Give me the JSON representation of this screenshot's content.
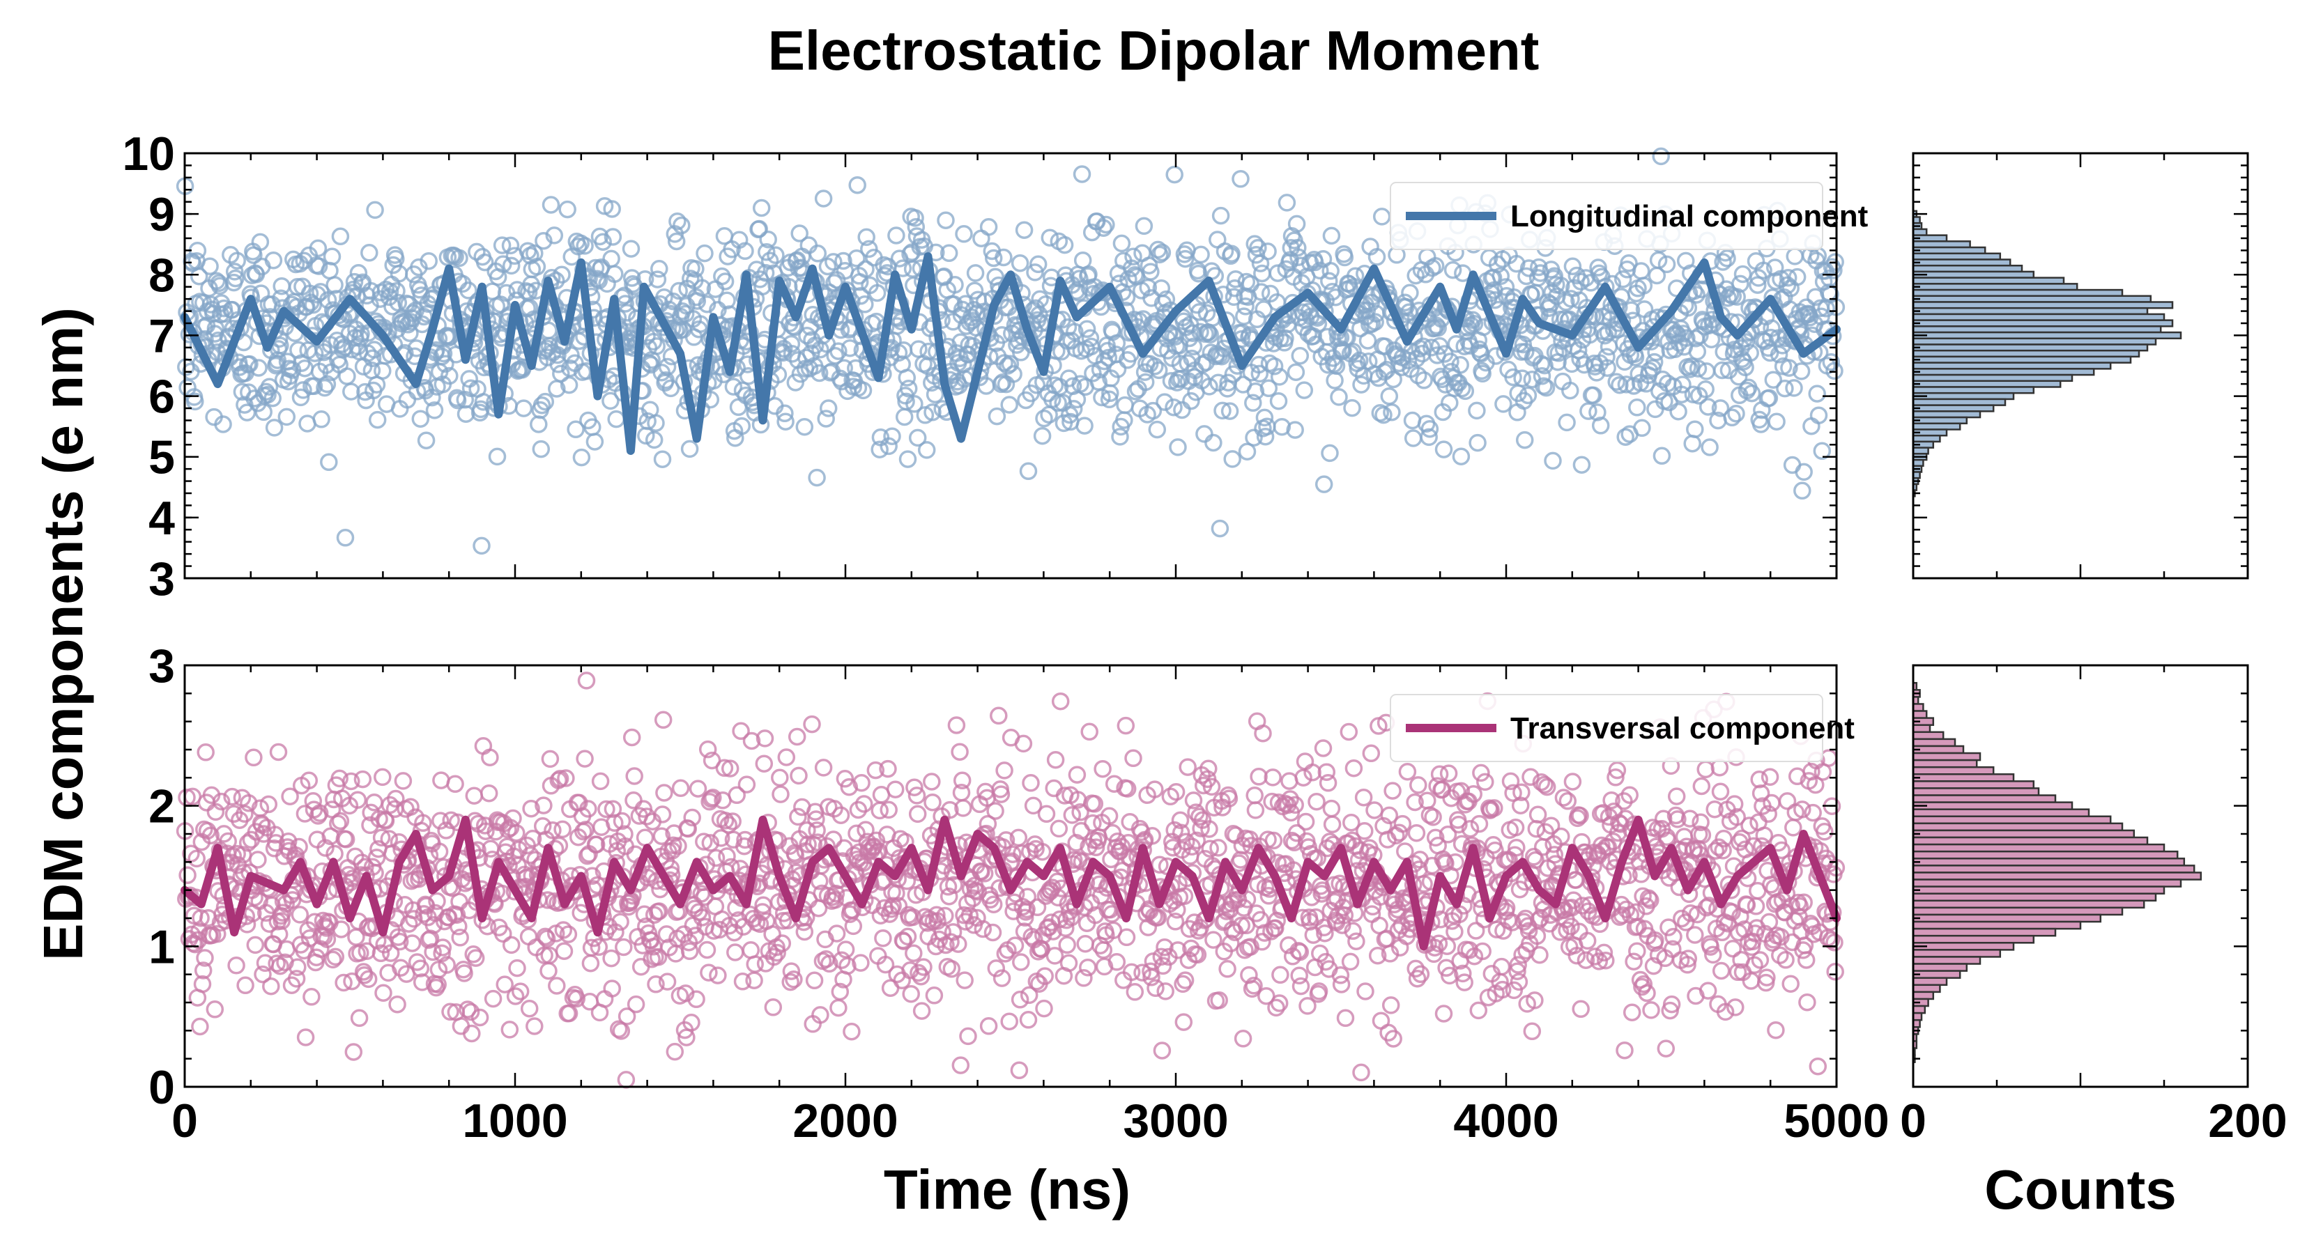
{
  "chart_data": {
    "type": "scatter",
    "title": "Electrostatic Dipolar Moment",
    "ylabel": "EDM components (e nm)",
    "xlabel": "Time (ns)",
    "hist_xlabel": "Counts",
    "grid": false,
    "xlim": [
      0,
      5000
    ],
    "x_ticks": [
      "0",
      "1000",
      "2000",
      "3000",
      "4000",
      "5000"
    ],
    "hist_xlim": [
      0,
      200
    ],
    "hist_ticks": [
      "0",
      "200"
    ],
    "panels": [
      {
        "name": "Longitudinal component",
        "color": "#4477aa",
        "ylim": [
          3,
          10
        ],
        "y_ticks": [
          "3",
          "4",
          "5",
          "6",
          "7",
          "8",
          "9",
          "10"
        ],
        "legend_position": "upper-right",
        "scatter": {
          "n_points": 2000,
          "mean": 7.1,
          "sd": 0.85
        },
        "running_mean": {
          "x": [
            0,
            100,
            200,
            250,
            300,
            400,
            500,
            600,
            700,
            750,
            800,
            850,
            900,
            950,
            1000,
            1050,
            1100,
            1150,
            1200,
            1250,
            1300,
            1350,
            1390,
            1450,
            1500,
            1550,
            1600,
            1650,
            1700,
            1750,
            1800,
            1850,
            1900,
            1950,
            2000,
            2100,
            2150,
            2200,
            2250,
            2300,
            2350,
            2400,
            2450,
            2500,
            2550,
            2600,
            2650,
            2700,
            2800,
            2900,
            3000,
            3100,
            3200,
            3300,
            3400,
            3500,
            3600,
            3700,
            3800,
            3850,
            3900,
            4000,
            4050,
            4100,
            4200,
            4300,
            4400,
            4500,
            4600,
            4650,
            4700,
            4800,
            4900,
            5000
          ],
          "y": [
            7.3,
            6.2,
            7.6,
            6.8,
            7.4,
            6.9,
            7.6,
            7.0,
            6.2,
            7.1,
            8.1,
            6.6,
            7.8,
            5.7,
            7.5,
            6.5,
            7.9,
            6.9,
            8.2,
            6.0,
            7.6,
            5.1,
            7.8,
            7.2,
            6.7,
            5.3,
            7.3,
            6.4,
            8.0,
            5.6,
            7.9,
            7.3,
            8.1,
            7.0,
            7.8,
            6.3,
            8.0,
            7.1,
            8.3,
            6.2,
            5.3,
            6.4,
            7.5,
            8.0,
            7.1,
            6.4,
            7.9,
            7.3,
            7.8,
            6.7,
            7.4,
            7.9,
            6.5,
            7.3,
            7.7,
            7.1,
            8.1,
            6.9,
            7.8,
            7.1,
            8.0,
            6.7,
            7.6,
            7.2,
            7.0,
            7.8,
            6.8,
            7.4,
            8.2,
            7.3,
            7.0,
            7.6,
            6.7,
            7.1
          ]
        },
        "histogram": {
          "bin_centers": [
            9.0,
            8.9,
            8.8,
            8.7,
            8.6,
            8.5,
            8.4,
            8.3,
            8.2,
            8.1,
            8.0,
            7.9,
            7.8,
            7.7,
            7.6,
            7.5,
            7.4,
            7.3,
            7.2,
            7.1,
            7.0,
            6.9,
            6.8,
            6.7,
            6.6,
            6.5,
            6.4,
            6.3,
            6.2,
            6.1,
            6.0,
            5.9,
            5.8,
            5.7,
            5.6,
            5.5,
            5.4,
            5.3,
            5.2,
            5.1,
            5.0,
            4.9,
            4.8,
            4.7,
            4.6,
            4.5,
            4.4
          ],
          "bin_width": 0.1,
          "counts": [
            2,
            4,
            5,
            8,
            20,
            34,
            43,
            52,
            58,
            65,
            72,
            90,
            98,
            125,
            142,
            155,
            140,
            150,
            155,
            148,
            160,
            145,
            140,
            135,
            130,
            118,
            108,
            95,
            88,
            72,
            60,
            55,
            48,
            40,
            32,
            28,
            20,
            16,
            12,
            9,
            8,
            6,
            5,
            4,
            3,
            2,
            1
          ]
        }
      },
      {
        "name": "Transversal component",
        "color": "#aa3377",
        "ylim": [
          0,
          3
        ],
        "y_ticks": [
          "0",
          "1",
          "2",
          "3"
        ],
        "legend_position": "upper-right",
        "scatter": {
          "n_points": 2000,
          "mean": 1.45,
          "sd": 0.45
        },
        "running_mean": {
          "x": [
            0,
            50,
            100,
            150,
            200,
            300,
            350,
            400,
            450,
            500,
            550,
            600,
            650,
            700,
            750,
            800,
            850,
            900,
            950,
            1000,
            1050,
            1100,
            1150,
            1200,
            1250,
            1300,
            1350,
            1400,
            1450,
            1500,
            1550,
            1600,
            1650,
            1700,
            1750,
            1800,
            1850,
            1900,
            1950,
            2000,
            2050,
            2100,
            2150,
            2200,
            2250,
            2300,
            2350,
            2400,
            2450,
            2500,
            2550,
            2600,
            2650,
            2700,
            2750,
            2800,
            2850,
            2900,
            2950,
            3000,
            3050,
            3100,
            3150,
            3200,
            3250,
            3300,
            3350,
            3400,
            3450,
            3500,
            3550,
            3600,
            3650,
            3700,
            3750,
            3800,
            3850,
            3900,
            3950,
            4000,
            4050,
            4100,
            4150,
            4200,
            4250,
            4300,
            4350,
            4400,
            4450,
            4500,
            4550,
            4600,
            4650,
            4700,
            4750,
            4800,
            4850,
            4900,
            4950,
            5000
          ],
          "y": [
            1.4,
            1.3,
            1.7,
            1.1,
            1.5,
            1.4,
            1.6,
            1.3,
            1.6,
            1.2,
            1.5,
            1.1,
            1.6,
            1.8,
            1.4,
            1.5,
            1.9,
            1.2,
            1.6,
            1.4,
            1.2,
            1.7,
            1.3,
            1.5,
            1.1,
            1.6,
            1.4,
            1.7,
            1.5,
            1.3,
            1.6,
            1.4,
            1.5,
            1.3,
            1.9,
            1.5,
            1.2,
            1.6,
            1.7,
            1.5,
            1.3,
            1.6,
            1.5,
            1.7,
            1.4,
            1.9,
            1.5,
            1.8,
            1.7,
            1.4,
            1.6,
            1.5,
            1.7,
            1.3,
            1.6,
            1.5,
            1.2,
            1.7,
            1.3,
            1.6,
            1.5,
            1.2,
            1.6,
            1.4,
            1.7,
            1.5,
            1.2,
            1.6,
            1.5,
            1.7,
            1.3,
            1.6,
            1.4,
            1.6,
            1.0,
            1.5,
            1.3,
            1.7,
            1.2,
            1.5,
            1.6,
            1.4,
            1.3,
            1.7,
            1.5,
            1.2,
            1.6,
            1.9,
            1.5,
            1.7,
            1.4,
            1.6,
            1.3,
            1.5,
            1.6,
            1.7,
            1.4,
            1.8,
            1.5,
            1.2
          ]
        },
        "histogram": {
          "bin_centers": [
            2.85,
            2.8,
            2.75,
            2.7,
            2.65,
            2.6,
            2.55,
            2.5,
            2.45,
            2.4,
            2.35,
            2.3,
            2.25,
            2.2,
            2.15,
            2.1,
            2.05,
            2.0,
            1.95,
            1.9,
            1.85,
            1.8,
            1.75,
            1.7,
            1.65,
            1.6,
            1.55,
            1.5,
            1.45,
            1.4,
            1.35,
            1.3,
            1.25,
            1.2,
            1.15,
            1.1,
            1.05,
            1.0,
            0.95,
            0.9,
            0.85,
            0.8,
            0.75,
            0.7,
            0.65,
            0.6,
            0.55,
            0.5,
            0.45,
            0.4,
            0.35,
            0.3,
            0.25,
            0.2
          ],
          "bin_width": 0.05,
          "counts": [
            2,
            4,
            3,
            6,
            8,
            12,
            10,
            18,
            25,
            30,
            40,
            38,
            48,
            60,
            72,
            75,
            85,
            95,
            105,
            118,
            125,
            132,
            140,
            150,
            158,
            162,
            168,
            172,
            160,
            150,
            145,
            138,
            125,
            112,
            100,
            85,
            72,
            60,
            52,
            40,
            32,
            28,
            20,
            16,
            12,
            9,
            7,
            5,
            4,
            3,
            2,
            2,
            1,
            1
          ]
        }
      }
    ]
  }
}
